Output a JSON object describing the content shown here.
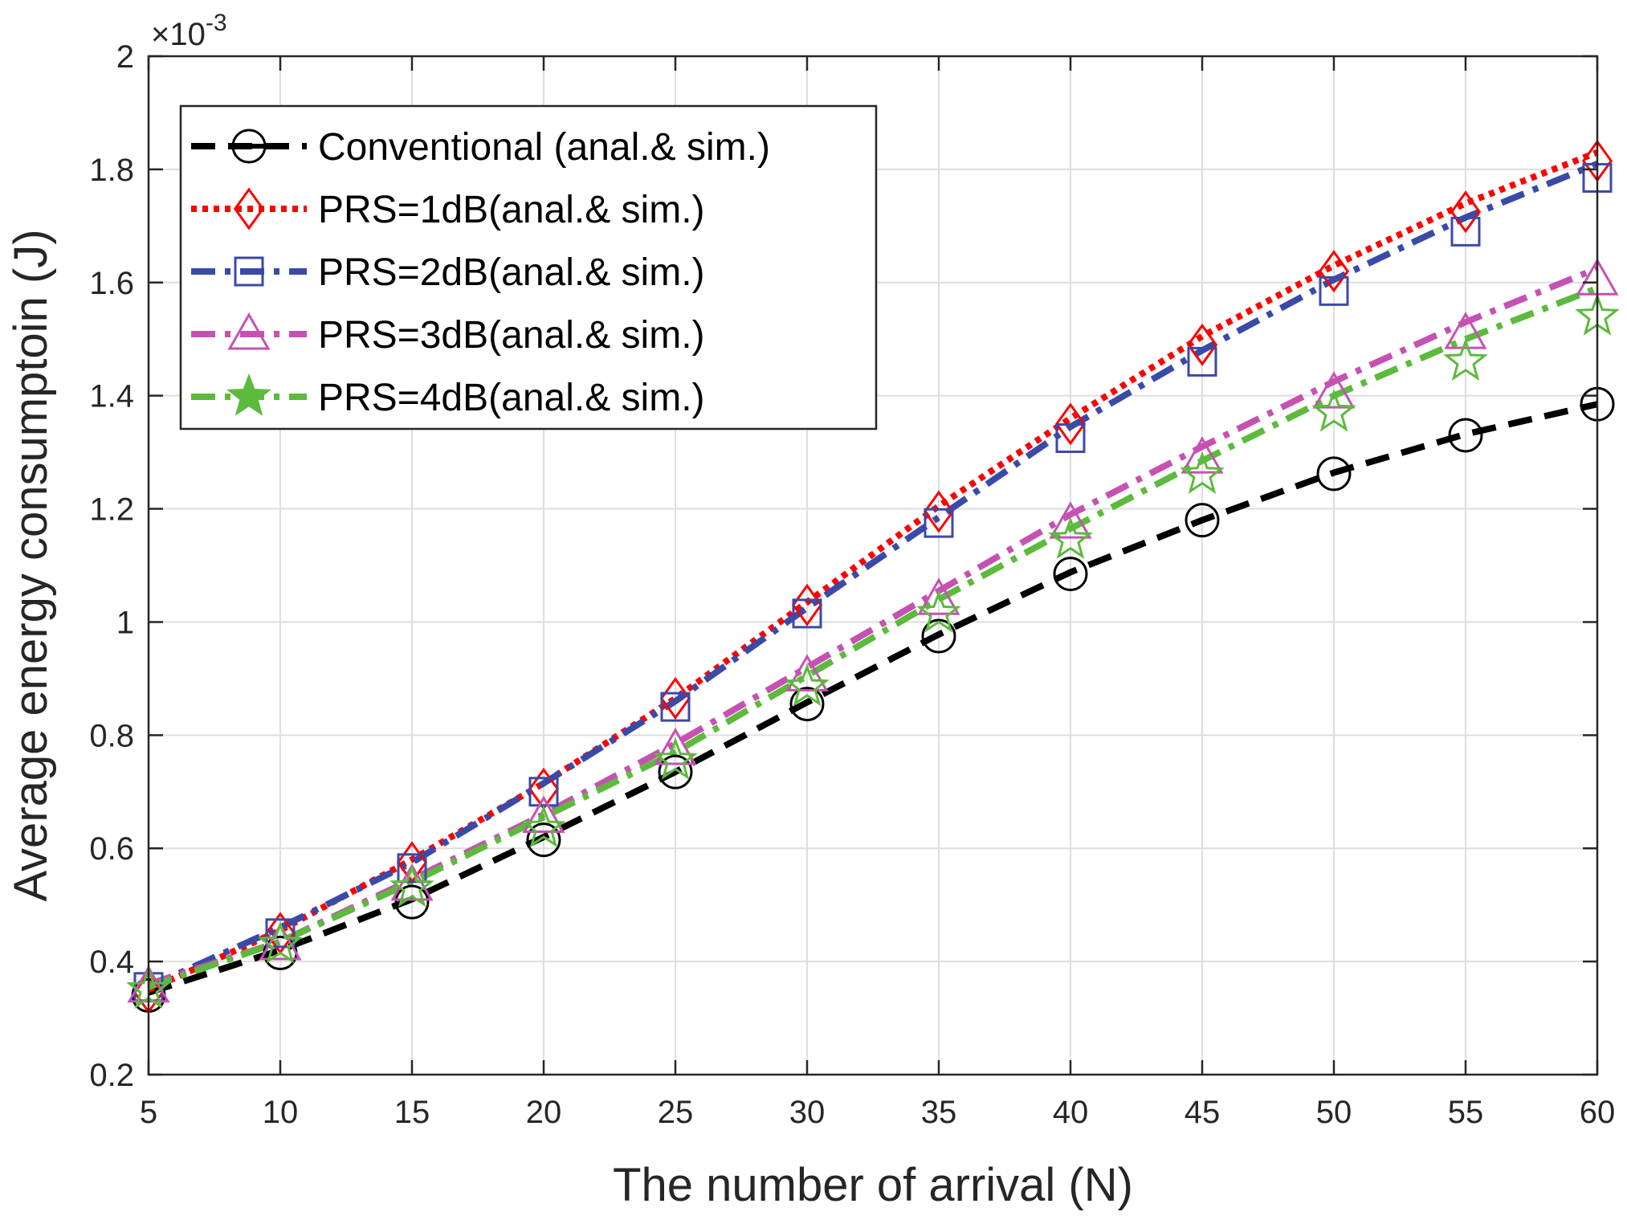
{
  "chart_data": {
    "type": "line",
    "title": "",
    "xlabel": "The number of arrival (N)",
    "ylabel": "Average energy consumptoin (J)",
    "y_exponent_label": "×10",
    "y_exponent_power": "-3",
    "x": [
      5,
      10,
      15,
      20,
      25,
      30,
      35,
      40,
      45,
      50,
      55,
      60
    ],
    "xlim": [
      5,
      60
    ],
    "ylim": [
      0.2,
      2.0
    ],
    "xticks": [
      "5",
      "10",
      "15",
      "20",
      "25",
      "30",
      "35",
      "40",
      "45",
      "50",
      "55",
      "60"
    ],
    "yticks": [
      "0.2",
      "0.4",
      "0.6",
      "0.8",
      "1",
      "1.2",
      "1.4",
      "1.6",
      "1.8",
      "2"
    ],
    "grid": true,
    "legend_position": "top-left",
    "series": [
      {
        "name": "Conventional (anal.& sim.)",
        "color": "#000000",
        "dash": "dashed",
        "marker": "circle",
        "analytic": [
          0.345,
          0.42,
          0.51,
          0.62,
          0.735,
          0.858,
          0.978,
          1.088,
          1.18,
          1.264,
          1.332,
          1.385
        ],
        "simulated": [
          0.34,
          0.415,
          0.505,
          0.615,
          0.735,
          0.855,
          0.975,
          1.085,
          1.18,
          1.262,
          1.33,
          1.385
        ]
      },
      {
        "name": "PRS=1dB(anal.& sim.)",
        "color": "#ff0000",
        "dash": "dotted",
        "marker": "diamond",
        "analytic": [
          0.35,
          0.455,
          0.58,
          0.715,
          0.865,
          1.035,
          1.205,
          1.36,
          1.505,
          1.63,
          1.74,
          1.83
        ],
        "simulated": [
          0.345,
          0.45,
          0.575,
          0.705,
          0.865,
          1.03,
          1.195,
          1.35,
          1.49,
          1.62,
          1.725,
          1.815
        ]
      },
      {
        "name": "PRS=2dB(anal.& sim.)",
        "color": "#3a4aa8",
        "dash": "dashdot",
        "marker": "square",
        "analytic": [
          0.355,
          0.46,
          0.575,
          0.715,
          0.86,
          1.025,
          1.185,
          1.345,
          1.48,
          1.605,
          1.715,
          1.81
        ],
        "simulated": [
          0.355,
          0.45,
          0.565,
          0.7,
          0.85,
          1.015,
          1.175,
          1.325,
          1.46,
          1.585,
          1.69,
          1.785
        ]
      },
      {
        "name": "PRS=3dB(anal.& sim.)",
        "color": "#c552b3",
        "dash": "dashdot",
        "marker": "triangle",
        "analytic": [
          0.36,
          0.435,
          0.545,
          0.66,
          0.785,
          0.92,
          1.055,
          1.19,
          1.31,
          1.425,
          1.53,
          1.625
        ],
        "simulated": [
          0.355,
          0.43,
          0.535,
          0.655,
          0.775,
          0.905,
          1.04,
          1.175,
          1.29,
          1.405,
          1.51,
          1.605
        ]
      },
      {
        "name": "PRS=4dB(anal.& sim.)",
        "color": "#5cba3c",
        "dash": "dashdot",
        "marker": "star",
        "analytic": [
          0.355,
          0.435,
          0.54,
          0.655,
          0.77,
          0.905,
          1.04,
          1.165,
          1.285,
          1.4,
          1.5,
          1.59
        ],
        "simulated": [
          0.35,
          0.43,
          0.53,
          0.635,
          0.755,
          0.885,
          1.015,
          1.145,
          1.26,
          1.37,
          1.46,
          1.54
        ]
      }
    ]
  }
}
